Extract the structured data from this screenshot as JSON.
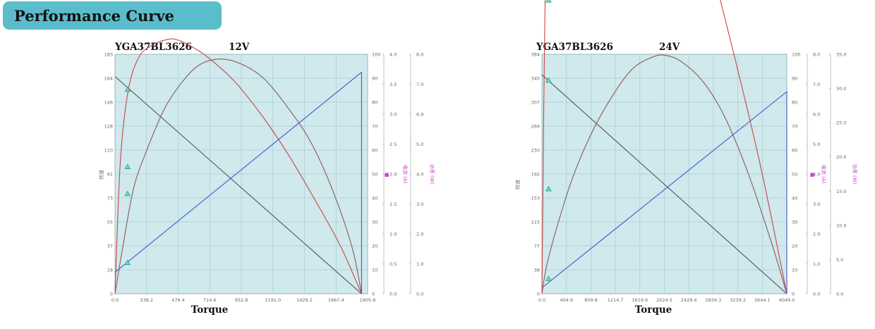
{
  "header": {
    "title": "Performance Curve"
  },
  "colors": {
    "plot_bg": "#cfe9ed",
    "grid": "#a9cdd3",
    "speed": "#555555",
    "efficiency": "#8b5a55",
    "power": "#cc4444",
    "current": "#4455cc",
    "marker": "#2aa889",
    "header_bg": "#5bbccb"
  },
  "chart_data": [
    {
      "type": "line",
      "model": "YGA37BL3626",
      "voltage": "12V",
      "xlabel": "Torque",
      "x_ticks": [
        "0.0",
        "238.2",
        "476.4",
        "714.6",
        "952.8",
        "1191.0",
        "1429.2",
        "1667.4",
        "1905.6"
      ],
      "xlim": [
        0,
        1905.6
      ],
      "y_left_label": "转速",
      "y_left_ticks": [
        "0",
        "18",
        "37",
        "55",
        "73",
        "91",
        "110",
        "128",
        "146",
        "164",
        "183"
      ],
      "y_left_lim": [
        0,
        183
      ],
      "y_eff_ticks": [
        "0",
        "10",
        "20",
        "30",
        "40",
        "50",
        "60",
        "70",
        "80",
        "90",
        "100"
      ],
      "y_eff_lim": [
        0,
        100
      ],
      "y_cur_ticks": [
        "0.0",
        "0.5",
        "1.0",
        "1.5",
        "2.0",
        "2.5",
        "3.0",
        "3.5",
        "4.0"
      ],
      "y_cur_lim": [
        0,
        4.0
      ],
      "y_cur_label": "电流 (A)",
      "y_pow_ticks": [
        "0.0",
        "1.0",
        "2.0",
        "3.0",
        "4.0",
        "5.0",
        "6.0",
        "7.0",
        "8.0"
      ],
      "y_pow_lim": [
        0,
        8.0
      ],
      "y_pow_label": "功率 (W)",
      "series": [
        {
          "key": "speed",
          "x": [
            0,
            1860
          ],
          "y": [
            166,
            0
          ]
        },
        {
          "key": "efficiency",
          "x": [
            0,
            60,
            140,
            240,
            380,
            530,
            650,
            800,
            950,
            1120,
            1300,
            1480,
            1650,
            1790,
            1860
          ],
          "y": [
            0,
            20,
            44,
            60,
            78,
            90,
            96,
            98,
            96,
            90,
            78,
            63,
            42,
            19,
            0
          ]
        },
        {
          "key": "power",
          "x": [
            0,
            40,
            100,
            180,
            280,
            400,
            470,
            560,
            700,
            900,
            1100,
            1300,
            1500,
            1700,
            1860
          ],
          "y": [
            0,
            2.2,
            3.4,
            3.95,
            4.15,
            4.25,
            4.24,
            4.15,
            3.95,
            3.55,
            3.0,
            2.35,
            1.6,
            0.8,
            0
          ]
        },
        {
          "key": "current",
          "x": [
            0,
            1860,
            1860
          ],
          "y": [
            0.36,
            3.7,
            0
          ]
        }
      ],
      "markers": [
        {
          "series": "speed",
          "x": 95,
          "y": 156
        },
        {
          "series": "power",
          "x": 95,
          "y": 2.12
        },
        {
          "series": "power",
          "x": 95,
          "y": 1.67
        },
        {
          "series": "current",
          "x": 95,
          "y": 0.52
        }
      ]
    },
    {
      "type": "line",
      "model": "YGA37BL3626",
      "voltage": "24V",
      "xlabel": "Torque",
      "x_ticks": [
        "0.0",
        "404.9",
        "809.8",
        "1214.7",
        "1619.6",
        "2024.5",
        "2429.4",
        "2834.3",
        "3239.2",
        "3644.1",
        "4049.0"
      ],
      "xlim": [
        0,
        4049
      ],
      "y_left_label": "转速",
      "y_left_ticks": [
        "0",
        "38",
        "77",
        "115",
        "153",
        "192",
        "230",
        "269",
        "307",
        "345",
        "384"
      ],
      "y_left_lim": [
        0,
        384
      ],
      "y_eff_ticks": [
        "0",
        "10",
        "20",
        "30",
        "40",
        "50",
        "60",
        "70",
        "80",
        "90",
        "100"
      ],
      "y_eff_lim": [
        0,
        100
      ],
      "y_cur_ticks": [
        "0.0",
        "1.0",
        "2.0",
        "3.0",
        "4.0",
        "5.0",
        "6.0",
        "7.0",
        "8.0"
      ],
      "y_cur_lim": [
        0,
        8.0
      ],
      "y_cur_label": "电流 (A)",
      "y_pow_ticks": [
        "0.0",
        "5.0",
        "10.0",
        "15.0",
        "20.0",
        "25.0",
        "30.0",
        "35.0"
      ],
      "y_pow_lim": [
        0,
        35.0
      ],
      "y_pow_label": "功率 (W)",
      "series": [
        {
          "key": "speed",
          "x": [
            0,
            4049
          ],
          "y": [
            351,
            0
          ]
        },
        {
          "key": "efficiency",
          "x": [
            0,
            80,
            250,
            500,
            800,
            1150,
            1500,
            1850,
            2050,
            2300,
            2650,
            3000,
            3400,
            3800,
            4049
          ],
          "y": [
            0,
            12,
            28,
            48,
            66,
            82,
            94,
            99,
            99.5,
            97,
            89,
            75,
            51,
            21,
            0
          ]
        },
        {
          "key": "power",
          "x": [
            0,
            60,
            150,
            300,
            500,
            700,
            850,
            1000,
            1300,
            1700,
            2100,
            2600,
            3100,
            3600,
            4049
          ],
          "y": [
            0,
            11,
            16.5,
            20.2,
            22,
            22.4,
            22.3,
            21.9,
            20.7,
            18.6,
            16.1,
            12.5,
            8.6,
            4.4,
            0
          ]
        },
        {
          "key": "current",
          "x": [
            0,
            4049,
            4049
          ],
          "y": [
            0.2,
            6.75,
            0
          ]
        }
      ],
      "markers": [
        {
          "series": "speed",
          "x": 110,
          "y": 342
        },
        {
          "series": "power",
          "x": 110,
          "y": 9.8
        },
        {
          "series": "power",
          "x": 110,
          "y": 3.5
        },
        {
          "series": "current",
          "x": 110,
          "y": 0.5
        }
      ]
    }
  ]
}
